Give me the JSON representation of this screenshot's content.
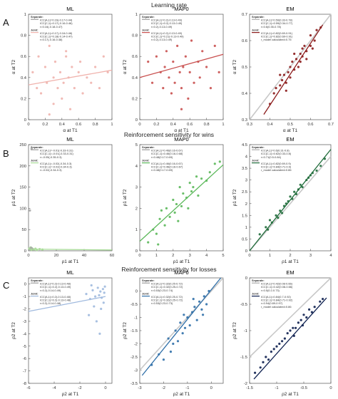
{
  "rows": [
    {
      "letter": "A",
      "title": "Learning rate"
    },
    {
      "letter": "B",
      "title": "Reinforcement sensitivity for wins"
    },
    {
      "letter": "C",
      "title": "Reinforcement sensitivity for losses"
    }
  ],
  "chart_data": [
    {
      "type": "scatter",
      "row": 0,
      "col": 0,
      "title": "ML",
      "xlabel": "α at T1",
      "ylabel": "α at T2",
      "xlim": [
        0,
        1
      ],
      "ylim": [
        0,
        1
      ],
      "xticks": [
        0,
        0.2,
        0.4,
        0.6,
        0.8,
        1
      ],
      "yticks": [
        0,
        0.2,
        0.4,
        0.6,
        0.8,
        1
      ],
      "color": "#f0b3ad",
      "line": [
        [
          0,
          0.33
        ],
        [
          1,
          0.47
        ]
      ],
      "identity": false,
      "legend": [
        "Separate:",
        "ICC(A,1)=0.16(-0.17-0.44)",
        "ICC(C,1)=0.17(-0.16-0.46)",
        "r=0.16(-0.18-0.47)",
        "Joint:",
        "ICC(A,1)=0.17(-0.16-0.46)",
        "ICC(C,1)=0.18(-0.14-0.47)",
        "r=0.17(-0.16-0.48)"
      ],
      "legend_colors": [
        "#999999",
        "#f0b3ad"
      ],
      "x": [
        0.05,
        0.1,
        0.12,
        0.15,
        0.2,
        0.22,
        0.25,
        0.3,
        0.3,
        0.32,
        0.35,
        0.38,
        0.4,
        0.42,
        0.45,
        0.48,
        0.5,
        0.52,
        0.55,
        0.6,
        0.62,
        0.65,
        0.7,
        0.75,
        0.8,
        0.85,
        0.9,
        0.95,
        0.25,
        0.45
      ],
      "y": [
        0.45,
        0.3,
        0.6,
        0.25,
        0.5,
        0.35,
        0.7,
        0.15,
        0.4,
        0.55,
        0.3,
        0.45,
        0.2,
        0.35,
        0.6,
        0.4,
        0.1,
        0.5,
        0.3,
        0.45,
        0.55,
        0.25,
        0.4,
        0.35,
        0.5,
        0.3,
        0.6,
        0.45,
        0.05,
        0.65
      ]
    },
    {
      "type": "scatter",
      "row": 0,
      "col": 1,
      "title": "MAP0",
      "xlabel": "α at T1",
      "ylabel": "α at T2",
      "xlim": [
        0,
        1
      ],
      "ylim": [
        0,
        1
      ],
      "xticks": [
        0,
        0.2,
        0.4,
        0.6,
        0.8,
        1
      ],
      "yticks": [
        0,
        0.2,
        0.4,
        0.6,
        0.8,
        1
      ],
      "color": "#c9504f",
      "line": [
        [
          0,
          0.4
        ],
        [
          1,
          0.62
        ]
      ],
      "identity": false,
      "legend": [
        "Separate:",
        "ICC(A,1)=0.2(-0.13-0.49)",
        "ICC(C,1)=0.2(-0.13-0.49)",
        "r=0.2(-0.13-0.49)",
        "Joint:",
        "ICC(A,1)=0.2(-0.13-0.49)",
        "ICC(C,1)=0.21(-0.13-0.49)",
        "r=0.2(-0.13-0.49)"
      ],
      "legend_colors": [
        "#999999",
        "#c9504f"
      ],
      "x": [
        0.1,
        0.15,
        0.2,
        0.25,
        0.28,
        0.3,
        0.32,
        0.35,
        0.38,
        0.4,
        0.42,
        0.45,
        0.48,
        0.5,
        0.52,
        0.55,
        0.58,
        0.6,
        0.62,
        0.65,
        0.7,
        0.72,
        0.75,
        0.8,
        0.85,
        0.9,
        0.95,
        0.5
      ],
      "y": [
        0.55,
        0.35,
        0.6,
        0.45,
        0.3,
        0.5,
        0.65,
        0.4,
        0.25,
        0.55,
        0.35,
        0.7,
        0.45,
        0.3,
        0.5,
        0.6,
        0.2,
        0.45,
        0.75,
        0.35,
        0.55,
        0.4,
        0.65,
        0.5,
        0.3,
        0.7,
        0.45,
        0.1
      ]
    },
    {
      "type": "scatter",
      "row": 0,
      "col": 2,
      "title": "EM",
      "xlabel": "α at T1",
      "ylabel": "α at T2",
      "xlim": [
        0.3,
        0.7
      ],
      "ylim": [
        0.3,
        0.7
      ],
      "xticks": [
        0.3,
        0.4,
        0.5,
        0.6,
        0.7
      ],
      "yticks": [
        0.3,
        0.4,
        0.5,
        0.6,
        0.7
      ],
      "color": "#8b1a1a",
      "line": [
        [
          0.37,
          0.32
        ],
        [
          0.66,
          0.66
        ]
      ],
      "identity": true,
      "legend": [
        "Separate:",
        "ICC(A,1)=0.59(0.33-0.78)",
        "ICC(C,1)=0.59(0.34-0.77)",
        "r=0.6(0.35-0.78)",
        "Joint:",
        "ICC(A,1)=0.82(0.69-0.91)",
        "ICC(C,1)=0.82(0.69-0.91)",
        "r_model calculated=0.75"
      ],
      "legend_colors": [
        "#aaaaaa",
        "#8b1a1a"
      ],
      "x": [
        0.4,
        0.42,
        0.43,
        0.45,
        0.46,
        0.47,
        0.48,
        0.49,
        0.5,
        0.5,
        0.51,
        0.52,
        0.53,
        0.54,
        0.55,
        0.55,
        0.56,
        0.57,
        0.58,
        0.6,
        0.6,
        0.62,
        0.63,
        0.65,
        0.45,
        0.52,
        0.58,
        0.48,
        0.56,
        0.61
      ],
      "y": [
        0.36,
        0.4,
        0.42,
        0.43,
        0.45,
        0.47,
        0.44,
        0.48,
        0.5,
        0.46,
        0.52,
        0.49,
        0.53,
        0.5,
        0.55,
        0.52,
        0.54,
        0.58,
        0.56,
        0.58,
        0.62,
        0.6,
        0.64,
        0.65,
        0.47,
        0.55,
        0.53,
        0.41,
        0.57,
        0.57
      ]
    },
    {
      "type": "scatter",
      "row": 1,
      "col": 0,
      "title": "ML",
      "xlabel": "ρ1 at T1",
      "ylabel": "ρ1 at T2",
      "xlim": [
        0,
        60
      ],
      "ylim": [
        0,
        250
      ],
      "xticks": [
        0,
        20,
        40,
        60
      ],
      "yticks": [
        0,
        50,
        100,
        150,
        200,
        250
      ],
      "color": "#a8dc98",
      "line": [
        [
          0,
          4
        ],
        [
          60,
          2
        ]
      ],
      "identity": false,
      "legend": [
        "Separate:",
        "ICC(A,1)=-0.01(-0.33-0.31)",
        "ICC(C,1)=-0.01(-0.33-0.31)",
        "r=-0.05(-0.35-0.3)",
        "Joint:",
        "ICC(A,1)=-0.02(-0.34-0.3)",
        "ICC(C,1)=-0.02(-0.34-0.3)",
        "r=-0.02(-0.34-0.3)"
      ],
      "legend_colors": [
        "#999999",
        "#a8dc98"
      ],
      "x": [
        0.5,
        1,
        1.5,
        2,
        2.5,
        3,
        4,
        5,
        6,
        8,
        10,
        1,
        2,
        3,
        1.5,
        0.8,
        2.2
      ],
      "y": [
        5,
        3,
        8,
        2,
        6,
        4,
        3,
        5,
        2,
        4,
        3,
        95,
        7,
        4,
        6,
        2,
        240
      ],
      "dot_colors": [
        "#a8dc98",
        "#a8dc98",
        "#a8dc98",
        "#a8dc98",
        "#a8dc98",
        "#a8dc98",
        "#a8dc98",
        "#a8dc98",
        "#a8dc98",
        "#a8dc98",
        "#a8dc98",
        "#aaaaaa",
        "#aaaaaa",
        "#aaaaaa",
        "#aaaaaa",
        "#aaaaaa",
        "#aaaaaa"
      ]
    },
    {
      "type": "scatter",
      "row": 1,
      "col": 1,
      "title": "MAP0",
      "xlabel": "ρ1 at T1",
      "ylabel": "ρ1 at T2",
      "xlim": [
        0,
        5
      ],
      "ylim": [
        0,
        5
      ],
      "xticks": [
        0,
        1,
        2,
        3,
        4,
        5
      ],
      "yticks": [
        0,
        1,
        2,
        3,
        4,
        5
      ],
      "color": "#5bb85a",
      "line": [
        [
          0,
          0.45
        ],
        [
          5,
          4.05
        ]
      ],
      "identity": false,
      "legend": [
        "Separate:",
        "ICC(A,1)=0.46(0.16-0.67)",
        "ICC(C,1)=0.46(0.16-0.68)",
        "r=0.48(0.17-0.69)",
        "Joint:",
        "ICC(A,1)=0.46(0.16-0.67)",
        "ICC(C,1)=0.46(0.16-0.67)",
        "r=0.48(0.17-0.69)"
      ],
      "legend_colors": [
        "#999999",
        "#5bb85a"
      ],
      "x": [
        0.5,
        0.8,
        1,
        1.2,
        1.3,
        1.5,
        1.6,
        1.8,
        2,
        2.1,
        2.2,
        2.4,
        2.5,
        2.6,
        2.8,
        3,
        3.1,
        3.2,
        3.4,
        3.5,
        3.7,
        4,
        4.2,
        4.5,
        4.8,
        1.1,
        2.3,
        2.9
      ],
      "y": [
        0.4,
        1,
        0.8,
        1.5,
        1.9,
        1.2,
        2,
        1.6,
        2.4,
        1.8,
        2.2,
        3,
        2.1,
        2.7,
        2.5,
        3.2,
        2.8,
        3,
        3.5,
        2.6,
        3.4,
        3.3,
        3.7,
        4.1,
        4.2,
        0.3,
        1.4,
        2
      ]
    },
    {
      "type": "scatter",
      "row": 1,
      "col": 2,
      "title": "EM",
      "xlabel": "ρ1 at T1",
      "ylabel": "ρ1 at T2",
      "xlim": [
        0,
        4
      ],
      "ylim": [
        0,
        4.5
      ],
      "xticks": [
        0,
        1,
        2,
        3,
        4
      ],
      "yticks": [
        0,
        0.5,
        1,
        1.5,
        2,
        2.5,
        3,
        3.5,
        4,
        4.5
      ],
      "color": "#1f6b3a",
      "line": [
        [
          0,
          0
        ],
        [
          4,
          4.3
        ]
      ],
      "identity": true,
      "legend": [
        "Separate:",
        "ICC(A,1)=0.6(0.31-0.8)",
        "ICC(C,1)=0.62(0.33-0.8)",
        "r=0.71(0.5-0.84)",
        "Joint:",
        "ICC(A,1)=0.82(0.69-0.9)",
        "ICC(C,1)=0.84(0.71-0.9)",
        "r_model calculated=0.86"
      ],
      "legend_colors": [
        "#aaaaaa",
        "#1f6b3a"
      ],
      "x": [
        0.5,
        0.8,
        1,
        1.1,
        1.3,
        1.5,
        1.6,
        1.8,
        1.9,
        2,
        2.1,
        2.2,
        2.4,
        2.5,
        2.6,
        2.8,
        3,
        3.1,
        3.3,
        3.5,
        3.7,
        1.4,
        2.3,
        2.9,
        1.7,
        0.9
      ],
      "y": [
        0.7,
        1,
        1.3,
        1.2,
        1.5,
        1.7,
        1.6,
        2,
        2.1,
        2.3,
        2.2,
        2.5,
        2.6,
        2.8,
        2.7,
        3,
        3.2,
        3.3,
        3.4,
        3.6,
        3.9,
        1.4,
        2.4,
        3.1,
        1.9,
        0.9
      ]
    },
    {
      "type": "scatter",
      "row": 2,
      "col": 0,
      "title": "ML",
      "xlabel": "ρ2 at T1",
      "ylabel": "ρ2 at T2",
      "xlim": [
        -6,
        0.5
      ],
      "ylim": [
        -8,
        0.5
      ],
      "xticks": [
        -6,
        -4,
        -2,
        0
      ],
      "yticks": [
        -8,
        -7,
        -6,
        -5,
        -4,
        -3,
        -2,
        -1,
        0
      ],
      "color": "#9fb9de",
      "line": [
        [
          -6,
          -2.2
        ],
        [
          0,
          -1
        ]
      ],
      "identity": false,
      "legend": [
        "Separate:",
        "ICC(A,1)=0.2(-0.13-0.48)",
        "ICC(C,1)=0.2(-0.13-0.49)",
        "r=0.2(-0.14-0.49)",
        "Joint:",
        "ICC(A,1)=0.2(-0.13-0.48)",
        "ICC(C,1)=0.2(-0.13-0.48)",
        "r=0.2(-0.14-0.48)"
      ],
      "legend_colors": [
        "#999999",
        "#9fb9de"
      ],
      "x": [
        -1.5,
        -1.2,
        -1,
        -0.8,
        -0.6,
        -0.5,
        -0.4,
        -0.3,
        -0.2,
        -0.1,
        -1.3,
        -0.9,
        -0.7,
        -0.35,
        -0.15,
        -0.05,
        -1.1,
        -0.45
      ],
      "y": [
        -0.8,
        -1.2,
        -0.5,
        -1,
        -0.3,
        -0.9,
        -0.6,
        -1.1,
        -0.4,
        -0.7,
        -2.5,
        -1.8,
        -3,
        -2,
        -1.5,
        -0.2,
        -0.1,
        -4
      ]
    },
    {
      "type": "scatter",
      "row": 2,
      "col": 1,
      "title": "MAP0",
      "xlabel": "ρ2 at T1",
      "ylabel": "ρ2 at T2",
      "xlim": [
        -3,
        0.5
      ],
      "ylim": [
        -3.5,
        0.5
      ],
      "xticks": [
        -3,
        -2,
        -1,
        0
      ],
      "yticks": [
        -3.5,
        -3,
        -2.5,
        -2,
        -1.5,
        -1,
        -0.5,
        0
      ],
      "color": "#2f6fa8",
      "line": [
        [
          -2.9,
          -3.2
        ],
        [
          0.4,
          0.5
        ]
      ],
      "identity": true,
      "legend": [
        "Separate:",
        "ICC(A,1)=0.32(0.25-0.72)",
        "ICC(C,1)=0.32(0.25-0.72)",
        "r=0.53(0.23-0.74)",
        "Joint:",
        "ICC(A,1)=0.32(0.25-0.72)",
        "ICC(C,1)=0.32(0.25-0.72)",
        "r=0.53(0.23-0.73)"
      ],
      "legend_colors": [
        "#999999",
        "#2f6fa8"
      ],
      "x": [
        -2.5,
        -2.2,
        -2,
        -1.8,
        -1.6,
        -1.5,
        -1.4,
        -1.3,
        -1.2,
        -1.1,
        -1,
        -0.9,
        -0.8,
        -0.7,
        -0.6,
        -0.5,
        -0.4,
        -0.3,
        -0.2,
        -0.1,
        -1.7,
        -1.15,
        -0.75,
        -0.35
      ],
      "y": [
        -2.8,
        -2.4,
        -2.6,
        -1.8,
        -2,
        -1.5,
        -1.9,
        -1.2,
        -1.6,
        -1.4,
        -1,
        -1.3,
        -0.8,
        -0.6,
        -1.1,
        -0.4,
        -0.7,
        -0.2,
        -0.5,
        0,
        -2.3,
        -0.9,
        -0.3,
        -0.9
      ]
    },
    {
      "type": "scatter",
      "row": 2,
      "col": 2,
      "title": "EM",
      "xlabel": "ρ2 at T1",
      "ylabel": "ρ2 at T2",
      "xlim": [
        -1.5,
        0
      ],
      "ylim": [
        -2,
        0
      ],
      "xticks": [
        -1.5,
        -1,
        -0.5,
        0
      ],
      "yticks": [
        -2,
        -1.5,
        -1,
        -0.5,
        0
      ],
      "color": "#0d1f4f",
      "line": [
        [
          -1.42,
          -1.92
        ],
        [
          -0.08,
          -0.38
        ]
      ],
      "identity": true,
      "legend": [
        "Separate:",
        "ICC(A,1)=0.42(0.08-0.66)",
        "ICC(C,1)=0.42(0.08-0.66)",
        "r=0.5(0.2-0.73)",
        "Joint:",
        "ICC(A,1)=0.84(0.7-0.92)",
        "ICC(C,1)=0.84(0.71-0.92)",
        "r=0.94(0.89-0.97)",
        "r_model calculated=0.86"
      ],
      "legend_colors": [
        "#aaaaaa",
        "#0d1f4f"
      ],
      "x": [
        -1.4,
        -1.3,
        -1.25,
        -1.2,
        -1.1,
        -1.05,
        -1,
        -0.95,
        -0.9,
        -0.85,
        -0.8,
        -0.75,
        -0.7,
        -0.65,
        -0.6,
        -0.55,
        -0.5,
        -0.45,
        -0.4,
        -0.35,
        -0.3,
        -0.2,
        -0.15,
        -1.15,
        -0.68,
        -0.52
      ],
      "y": [
        -1.8,
        -1.7,
        -1.6,
        -1.5,
        -1.4,
        -1.35,
        -1.3,
        -1.25,
        -1.2,
        -1.15,
        -1.05,
        -1,
        -0.95,
        -0.95,
        -0.85,
        -0.8,
        -0.7,
        -0.75,
        -0.6,
        -0.65,
        -0.55,
        -0.45,
        -0.4,
        -1.55,
        -1.1,
        -0.9
      ]
    }
  ]
}
